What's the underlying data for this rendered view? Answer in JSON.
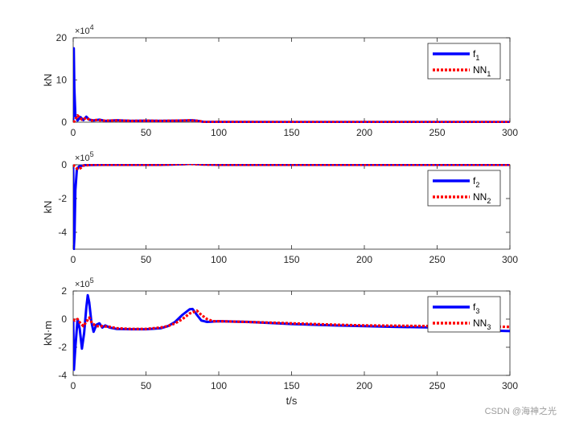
{
  "chart_data": [
    {
      "type": "line",
      "ylabel": "kN",
      "xlabel": "",
      "exponent_base": "×10",
      "exponent_power": "4",
      "xlim": [
        0,
        300
      ],
      "ylim": [
        0,
        20
      ],
      "xticks": [
        "0",
        "50",
        "100",
        "150",
        "200",
        "250",
        "300"
      ],
      "yticks": [
        "0",
        "10",
        "20"
      ],
      "ytick_values": [
        0,
        10,
        20
      ],
      "legend_position": "top-right",
      "series": [
        {
          "name": "f",
          "sub": "1",
          "color": "#0000ff",
          "style": "solid",
          "points": [
            [
              0,
              0
            ],
            [
              0.4,
              17.5
            ],
            [
              0.8,
              8
            ],
            [
              1.5,
              1.5
            ],
            [
              3,
              0.4
            ],
            [
              5,
              1.2
            ],
            [
              7,
              0.5
            ],
            [
              9,
              1.3
            ],
            [
              11,
              0.6
            ],
            [
              14,
              0.4
            ],
            [
              18,
              0.6
            ],
            [
              22,
              0.3
            ],
            [
              30,
              0.45
            ],
            [
              40,
              0.3
            ],
            [
              50,
              0.35
            ],
            [
              60,
              0.3
            ],
            [
              70,
              0.35
            ],
            [
              78,
              0.4
            ],
            [
              82,
              0.45
            ],
            [
              86,
              0.3
            ],
            [
              90,
              0.05
            ],
            [
              100,
              0.05
            ],
            [
              150,
              0.03
            ],
            [
              200,
              0.03
            ],
            [
              250,
              0.03
            ],
            [
              300,
              0.03
            ]
          ]
        },
        {
          "name": "NN",
          "sub": "1",
          "color": "#ff0000",
          "style": "dotted",
          "points": [
            [
              0,
              0
            ],
            [
              1,
              0.3
            ],
            [
              3,
              1.6
            ],
            [
              6,
              0.6
            ],
            [
              9,
              1.0
            ],
            [
              12,
              0.4
            ],
            [
              16,
              0.5
            ],
            [
              22,
              0.35
            ],
            [
              30,
              0.4
            ],
            [
              40,
              0.3
            ],
            [
              50,
              0.35
            ],
            [
              60,
              0.3
            ],
            [
              70,
              0.35
            ],
            [
              80,
              0.42
            ],
            [
              86,
              0.3
            ],
            [
              90,
              0.05
            ],
            [
              100,
              0.05
            ],
            [
              150,
              0.03
            ],
            [
              200,
              0.03
            ],
            [
              250,
              0.03
            ],
            [
              300,
              0.03
            ]
          ]
        }
      ]
    },
    {
      "type": "line",
      "ylabel": "kN",
      "xlabel": "",
      "exponent_base": "×10",
      "exponent_power": "5",
      "xlim": [
        0,
        300
      ],
      "ylim": [
        -5,
        0
      ],
      "xticks": [
        "0",
        "50",
        "100",
        "150",
        "200",
        "250",
        "300"
      ],
      "yticks": [
        "-4",
        "-2",
        "0"
      ],
      "ytick_values": [
        -4,
        -2,
        0
      ],
      "legend_position": "top-right",
      "series": [
        {
          "name": "f",
          "sub": "2",
          "color": "#0000ff",
          "style": "solid",
          "points": [
            [
              0,
              0
            ],
            [
              0.4,
              -5
            ],
            [
              0.9,
              -4.2
            ],
            [
              1.5,
              -1.5
            ],
            [
              2.5,
              -0.3
            ],
            [
              4,
              -0.1
            ],
            [
              8,
              -0.02
            ],
            [
              20,
              0
            ],
            [
              60,
              0
            ],
            [
              75,
              0.03
            ],
            [
              82,
              0.06
            ],
            [
              88,
              0.02
            ],
            [
              100,
              0
            ],
            [
              150,
              0
            ],
            [
              200,
              0
            ],
            [
              250,
              0
            ],
            [
              300,
              0
            ]
          ]
        },
        {
          "name": "NN",
          "sub": "2",
          "color": "#ff0000",
          "style": "dotted",
          "points": [
            [
              0,
              0
            ],
            [
              1,
              -0.1
            ],
            [
              3,
              -0.25
            ],
            [
              5,
              -0.2
            ],
            [
              7,
              -0.05
            ],
            [
              12,
              0
            ],
            [
              60,
              0
            ],
            [
              80,
              0.05
            ],
            [
              88,
              0.02
            ],
            [
              100,
              0
            ],
            [
              300,
              0
            ]
          ]
        }
      ]
    },
    {
      "type": "line",
      "ylabel": "kN·m",
      "xlabel": "t/s",
      "exponent_base": "×10",
      "exponent_power": "5",
      "xlim": [
        0,
        300
      ],
      "ylim": [
        -4,
        2
      ],
      "xticks": [
        "0",
        "50",
        "100",
        "150",
        "200",
        "250",
        "300"
      ],
      "yticks": [
        "-4",
        "-2",
        "0",
        "2"
      ],
      "ytick_values": [
        -4,
        -2,
        0,
        2
      ],
      "legend_position": "top-right",
      "series": [
        {
          "name": "f",
          "sub": "3",
          "color": "#0000ff",
          "style": "solid",
          "points": [
            [
              0,
              0
            ],
            [
              0.5,
              -3.6
            ],
            [
              1.5,
              -2.0
            ],
            [
              3,
              0
            ],
            [
              4.5,
              -0.7
            ],
            [
              6,
              -2.1
            ],
            [
              7.5,
              -1.0
            ],
            [
              9,
              0.8
            ],
            [
              10,
              1.7
            ],
            [
              11,
              1.2
            ],
            [
              12.5,
              -0.2
            ],
            [
              14,
              -0.9
            ],
            [
              16,
              -0.4
            ],
            [
              18,
              -0.3
            ],
            [
              20,
              -0.6
            ],
            [
              22,
              -0.45
            ],
            [
              25,
              -0.6
            ],
            [
              30,
              -0.7
            ],
            [
              40,
              -0.72
            ],
            [
              50,
              -0.72
            ],
            [
              60,
              -0.65
            ],
            [
              65,
              -0.5
            ],
            [
              70,
              -0.2
            ],
            [
              75,
              0.3
            ],
            [
              80,
              0.7
            ],
            [
              82,
              0.72
            ],
            [
              85,
              0.3
            ],
            [
              88,
              -0.1
            ],
            [
              92,
              -0.2
            ],
            [
              100,
              -0.15
            ],
            [
              120,
              -0.2
            ],
            [
              150,
              -0.35
            ],
            [
              180,
              -0.45
            ],
            [
              200,
              -0.5
            ],
            [
              220,
              -0.55
            ],
            [
              250,
              -0.6
            ],
            [
              280,
              -0.8
            ],
            [
              300,
              -0.85
            ]
          ]
        },
        {
          "name": "NN",
          "sub": "3",
          "color": "#ff0000",
          "style": "dotted",
          "points": [
            [
              0,
              0
            ],
            [
              1,
              -0.1
            ],
            [
              3,
              0
            ],
            [
              5,
              -0.3
            ],
            [
              7,
              -0.5
            ],
            [
              9,
              -0.2
            ],
            [
              11,
              0.1
            ],
            [
              13,
              -0.3
            ],
            [
              16,
              -0.5
            ],
            [
              20,
              -0.5
            ],
            [
              25,
              -0.55
            ],
            [
              30,
              -0.65
            ],
            [
              40,
              -0.7
            ],
            [
              50,
              -0.7
            ],
            [
              60,
              -0.6
            ],
            [
              65,
              -0.5
            ],
            [
              70,
              -0.3
            ],
            [
              75,
              0.0
            ],
            [
              80,
              0.4
            ],
            [
              85,
              0.6
            ],
            [
              88,
              0.3
            ],
            [
              92,
              0.0
            ],
            [
              96,
              -0.15
            ],
            [
              100,
              -0.15
            ],
            [
              120,
              -0.2
            ],
            [
              150,
              -0.3
            ],
            [
              180,
              -0.4
            ],
            [
              200,
              -0.45
            ],
            [
              250,
              -0.5
            ],
            [
              300,
              -0.55
            ]
          ]
        }
      ]
    }
  ],
  "watermark": "CSDN @海神之光"
}
